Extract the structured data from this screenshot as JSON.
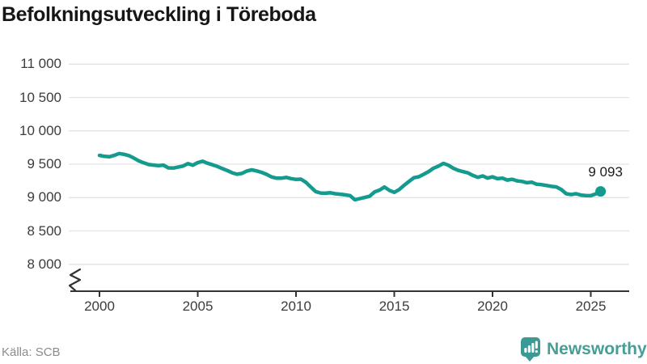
{
  "header": {
    "title": "Befolkningsutveckling i Töreboda"
  },
  "footer": {
    "source": "Källa: SCB",
    "brand": "Newsworthy"
  },
  "colors": {
    "line": "#149b8d",
    "grid": "#e3e3e3",
    "axis": "#333333",
    "brand": "#3b9a93"
  },
  "chart_data": {
    "type": "line",
    "title": "Befolkningsutveckling i Töreboda",
    "xlabel": "",
    "ylabel": "",
    "grid": "horizontal",
    "axis_break": true,
    "ylim": [
      8000,
      11000
    ],
    "xlim": [
      2000,
      2025.5
    ],
    "ytick_labels": [
      "11 000",
      "10 500",
      "10 000",
      "9 500",
      "9 000",
      "8 500",
      "8 000"
    ],
    "ytick_values": [
      11000,
      10500,
      10000,
      9500,
      9000,
      8500,
      8000
    ],
    "xtick_labels": [
      "2000",
      "2005",
      "2010",
      "2015",
      "2020",
      "2025"
    ],
    "xtick_values": [
      2000,
      2005,
      2010,
      2015,
      2020,
      2025
    ],
    "end_label": "9 093",
    "end_value": 9093,
    "points": [
      [
        2000.0,
        9632
      ],
      [
        2000.25,
        9618
      ],
      [
        2000.5,
        9612
      ],
      [
        2000.75,
        9632
      ],
      [
        2001.0,
        9660
      ],
      [
        2001.25,
        9648
      ],
      [
        2001.5,
        9628
      ],
      [
        2001.75,
        9592
      ],
      [
        2002.0,
        9550
      ],
      [
        2002.25,
        9520
      ],
      [
        2002.5,
        9495
      ],
      [
        2002.75,
        9487
      ],
      [
        2003.0,
        9479
      ],
      [
        2003.25,
        9487
      ],
      [
        2003.5,
        9446
      ],
      [
        2003.75,
        9442
      ],
      [
        2004.0,
        9456
      ],
      [
        2004.25,
        9472
      ],
      [
        2004.5,
        9510
      ],
      [
        2004.75,
        9486
      ],
      [
        2005.0,
        9524
      ],
      [
        2005.25,
        9545
      ],
      [
        2005.5,
        9515
      ],
      [
        2005.75,
        9492
      ],
      [
        2006.0,
        9466
      ],
      [
        2006.25,
        9435
      ],
      [
        2006.5,
        9405
      ],
      [
        2006.75,
        9372
      ],
      [
        2007.0,
        9350
      ],
      [
        2007.25,
        9362
      ],
      [
        2007.5,
        9398
      ],
      [
        2007.75,
        9415
      ],
      [
        2008.0,
        9400
      ],
      [
        2008.25,
        9378
      ],
      [
        2008.5,
        9348
      ],
      [
        2008.75,
        9310
      ],
      [
        2009.0,
        9292
      ],
      [
        2009.25,
        9290
      ],
      [
        2009.5,
        9302
      ],
      [
        2009.75,
        9284
      ],
      [
        2010.0,
        9272
      ],
      [
        2010.25,
        9276
      ],
      [
        2010.5,
        9230
      ],
      [
        2010.75,
        9160
      ],
      [
        2011.0,
        9090
      ],
      [
        2011.25,
        9068
      ],
      [
        2011.5,
        9065
      ],
      [
        2011.75,
        9072
      ],
      [
        2012.0,
        9058
      ],
      [
        2012.25,
        9050
      ],
      [
        2012.5,
        9040
      ],
      [
        2012.75,
        9030
      ],
      [
        2013.0,
        8967
      ],
      [
        2013.25,
        8985
      ],
      [
        2013.5,
        9002
      ],
      [
        2013.75,
        9020
      ],
      [
        2014.0,
        9085
      ],
      [
        2014.25,
        9112
      ],
      [
        2014.5,
        9158
      ],
      [
        2014.75,
        9108
      ],
      [
        2015.0,
        9078
      ],
      [
        2015.25,
        9120
      ],
      [
        2015.5,
        9185
      ],
      [
        2015.75,
        9242
      ],
      [
        2016.0,
        9298
      ],
      [
        2016.25,
        9312
      ],
      [
        2016.5,
        9350
      ],
      [
        2016.75,
        9390
      ],
      [
        2017.0,
        9440
      ],
      [
        2017.25,
        9472
      ],
      [
        2017.5,
        9512
      ],
      [
        2017.75,
        9485
      ],
      [
        2018.0,
        9440
      ],
      [
        2018.25,
        9408
      ],
      [
        2018.5,
        9388
      ],
      [
        2018.75,
        9370
      ],
      [
        2019.0,
        9332
      ],
      [
        2019.25,
        9304
      ],
      [
        2019.5,
        9324
      ],
      [
        2019.75,
        9291
      ],
      [
        2020.0,
        9311
      ],
      [
        2020.25,
        9283
      ],
      [
        2020.5,
        9291
      ],
      [
        2020.75,
        9262
      ],
      [
        2021.0,
        9274
      ],
      [
        2021.25,
        9250
      ],
      [
        2021.5,
        9242
      ],
      [
        2021.75,
        9222
      ],
      [
        2022.0,
        9230
      ],
      [
        2022.25,
        9200
      ],
      [
        2022.5,
        9193
      ],
      [
        2022.75,
        9181
      ],
      [
        2023.0,
        9168
      ],
      [
        2023.25,
        9160
      ],
      [
        2023.5,
        9119
      ],
      [
        2023.75,
        9058
      ],
      [
        2024.0,
        9046
      ],
      [
        2024.25,
        9058
      ],
      [
        2024.5,
        9037
      ],
      [
        2024.75,
        9030
      ],
      [
        2025.0,
        9028
      ],
      [
        2025.25,
        9055
      ],
      [
        2025.5,
        9093
      ]
    ]
  }
}
